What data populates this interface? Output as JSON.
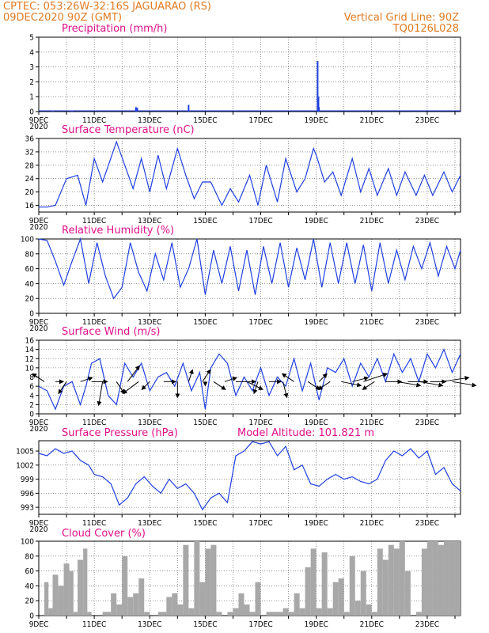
{
  "header": {
    "line1_left": "CPTEC:  053:26W-32:16S  JAGUARAO (RS)",
    "line2_left": "09DEC2020 90Z (GMT)",
    "line1_right": "Vertical Grid Line: 90Z",
    "line2_right": "TQ0126L028"
  },
  "colors": {
    "series": "#1f3fe0",
    "cloud": "#a8a8a8",
    "title": "#e0108a",
    "header": "#e07b22",
    "wind": "#000000"
  },
  "x_axis": {
    "labels": [
      "9DEC",
      "11DEC",
      "13DEC",
      "15DEC",
      "17DEC",
      "19DEC",
      "21DEC",
      "23DEC"
    ],
    "label_days": [
      9,
      11,
      13,
      15,
      17,
      19,
      21,
      23
    ],
    "first_label": "9DEC",
    "subtitle_fragment": "2020",
    "range_days": [
      9,
      24.2
    ]
  },
  "chart_data": [
    {
      "id": "precip",
      "type": "bar",
      "title": "Precipitation (mm/h)",
      "ylim": [
        0,
        5
      ],
      "yticks": [
        0,
        1,
        2,
        3,
        4,
        5
      ],
      "grid": true,
      "x": [
        9.5,
        10.2,
        12.5,
        12.55,
        14.4,
        19.05,
        19.08,
        19.1
      ],
      "values": [
        0.05,
        0.05,
        0.3,
        0.25,
        0.45,
        3.4,
        1.0,
        0.3
      ]
    },
    {
      "id": "temp",
      "type": "line",
      "title": "Surface Temperature (nC)",
      "ylim": [
        14,
        36
      ],
      "yticks": [
        16,
        20,
        24,
        28,
        32,
        36
      ],
      "grid": true,
      "x": [
        9.0,
        9.3,
        9.6,
        10.0,
        10.4,
        10.7,
        11.0,
        11.3,
        11.8,
        12.1,
        12.4,
        12.7,
        13.0,
        13.3,
        13.6,
        14.0,
        14.3,
        14.6,
        14.9,
        15.2,
        15.6,
        15.9,
        16.2,
        16.6,
        16.9,
        17.2,
        17.6,
        17.9,
        18.3,
        18.6,
        18.9,
        19.0,
        19.3,
        19.6,
        19.9,
        20.3,
        20.6,
        20.9,
        21.2,
        21.6,
        21.9,
        22.2,
        22.6,
        22.9,
        23.2,
        23.6,
        23.9,
        24.2
      ],
      "values": [
        15.5,
        15.5,
        16,
        24,
        25,
        16,
        30,
        23,
        35,
        28,
        21,
        30,
        20,
        31,
        21,
        33,
        25,
        18,
        23,
        23,
        16,
        21,
        17,
        25,
        16,
        28,
        17,
        30,
        20,
        24,
        33,
        31,
        23,
        26,
        19,
        30,
        20,
        27,
        19,
        27,
        19,
        26,
        19,
        25,
        19,
        26,
        20,
        25
      ]
    },
    {
      "id": "rh",
      "type": "line",
      "title": "Relative Humidity (%)",
      "ylim": [
        0,
        100
      ],
      "yticks": [
        0,
        20,
        40,
        60,
        80,
        100
      ],
      "grid": true,
      "x": [
        9.0,
        9.3,
        9.6,
        9.9,
        10.2,
        10.5,
        10.8,
        11.1,
        11.4,
        11.7,
        12.0,
        12.3,
        12.6,
        12.9,
        13.2,
        13.5,
        13.8,
        14.1,
        14.4,
        14.7,
        15.0,
        15.3,
        15.6,
        15.9,
        16.2,
        16.5,
        16.8,
        17.1,
        17.4,
        17.7,
        18.0,
        18.3,
        18.6,
        18.9,
        19.2,
        19.5,
        19.8,
        20.1,
        20.4,
        20.7,
        21.0,
        21.3,
        21.6,
        21.9,
        22.2,
        22.5,
        22.8,
        23.1,
        23.4,
        23.7,
        24.0,
        24.2
      ],
      "values": [
        100,
        98,
        70,
        38,
        70,
        100,
        40,
        95,
        50,
        20,
        35,
        95,
        55,
        30,
        80,
        45,
        95,
        35,
        60,
        100,
        25,
        85,
        40,
        90,
        30,
        85,
        25,
        90,
        40,
        95,
        35,
        88,
        45,
        100,
        35,
        95,
        40,
        95,
        40,
        92,
        30,
        95,
        40,
        85,
        45,
        90,
        60,
        95,
        50,
        90,
        60,
        85
      ]
    },
    {
      "id": "wind",
      "type": "line",
      "title": "Surface Wind (m/s)",
      "ylim": [
        0,
        16
      ],
      "yticks": [
        0,
        2,
        4,
        6,
        8,
        10,
        12,
        14,
        16
      ],
      "grid": true,
      "x": [
        9.0,
        9.3,
        9.6,
        9.9,
        10.2,
        10.5,
        10.7,
        10.9,
        11.2,
        11.5,
        11.8,
        12.1,
        12.4,
        12.7,
        13.0,
        13.3,
        13.6,
        13.9,
        14.2,
        14.5,
        14.8,
        15.0,
        15.2,
        15.5,
        15.8,
        16.1,
        16.4,
        16.7,
        17.0,
        17.3,
        17.6,
        17.9,
        18.2,
        18.5,
        18.8,
        19.1,
        19.4,
        19.7,
        20.0,
        20.3,
        20.6,
        20.9,
        21.2,
        21.5,
        21.8,
        22.1,
        22.4,
        22.7,
        23.0,
        23.3,
        23.6,
        23.9,
        24.2
      ],
      "values": [
        6,
        5,
        1,
        6,
        7,
        2,
        6,
        11,
        12,
        4,
        2,
        11,
        8,
        11,
        5,
        8,
        9,
        6,
        11,
        5,
        9,
        1,
        10,
        13,
        11,
        4,
        8,
        5,
        10,
        4,
        8,
        6,
        12,
        5,
        11,
        3,
        10,
        9,
        12,
        6,
        11,
        8,
        12,
        7,
        13,
        9,
        12,
        7,
        13,
        10,
        14,
        9,
        13
      ]
    },
    {
      "id": "pres",
      "type": "line",
      "title": "Surface Pressure (hPa)",
      "annotation": "Model Altitude: 101.821  m",
      "ylim": [
        991.5,
        1007.2
      ],
      "yticks": [
        993,
        996,
        999,
        1002,
        1005
      ],
      "grid": true,
      "x": [
        9.0,
        9.3,
        9.6,
        9.9,
        10.2,
        10.5,
        10.8,
        11.0,
        11.3,
        11.6,
        11.9,
        12.2,
        12.5,
        12.8,
        13.1,
        13.4,
        13.7,
        14.0,
        14.3,
        14.6,
        14.9,
        15.2,
        15.5,
        15.8,
        16.1,
        16.4,
        16.7,
        17.0,
        17.3,
        17.6,
        17.9,
        18.2,
        18.5,
        18.8,
        19.1,
        19.4,
        19.7,
        20.0,
        20.3,
        20.6,
        20.9,
        21.2,
        21.5,
        21.8,
        22.1,
        22.4,
        22.7,
        23.0,
        23.3,
        23.6,
        23.9,
        24.2
      ],
      "values": [
        1004.5,
        1004,
        1005.5,
        1004.5,
        1005,
        1003,
        1002,
        1000,
        999.5,
        998,
        993.5,
        995,
        998,
        999.5,
        997.5,
        996,
        999,
        997,
        998,
        996,
        992.5,
        995,
        996,
        994,
        1004,
        1005,
        1007,
        1006.5,
        1007,
        1004,
        1006,
        1001,
        1002,
        998,
        997.5,
        999,
        1000,
        999,
        999.5,
        998.5,
        998,
        999,
        1003,
        1005,
        1004,
        1005.5,
        1003.5,
        1005,
        1000,
        1001.5,
        998,
        996.5
      ]
    },
    {
      "id": "cloud",
      "type": "area",
      "title": "Cloud Cover (%)",
      "ylim": [
        0,
        100
      ],
      "yticks": [
        0,
        20,
        40,
        60,
        80,
        100
      ],
      "grid": true,
      "x": [
        9.0,
        9.2,
        9.35,
        9.5,
        9.7,
        9.9,
        10.1,
        10.25,
        10.4,
        10.6,
        10.75,
        10.9,
        11.0,
        11.3,
        11.6,
        11.8,
        12.0,
        12.2,
        12.4,
        12.6,
        12.8,
        13.0,
        13.3,
        13.6,
        13.8,
        14.0,
        14.2,
        14.4,
        14.6,
        14.8,
        15.0,
        15.2,
        15.4,
        15.6,
        15.8,
        16.0,
        16.2,
        16.4,
        16.6,
        16.8,
        17.0,
        17.2,
        17.5,
        17.8,
        18.0,
        18.2,
        18.4,
        18.6,
        18.8,
        19.0,
        19.2,
        19.4,
        19.6,
        19.8,
        20.0,
        20.2,
        20.4,
        20.6,
        20.8,
        21.0,
        21.2,
        21.4,
        21.6,
        21.8,
        22.0,
        22.2,
        22.4,
        22.6,
        22.8,
        23.0,
        23.2,
        23.4,
        23.6,
        23.8,
        24.0,
        24.2
      ],
      "values": [
        0,
        45,
        10,
        55,
        40,
        70,
        60,
        5,
        75,
        90,
        5,
        0,
        0,
        5,
        30,
        15,
        80,
        25,
        30,
        50,
        5,
        0,
        5,
        25,
        30,
        15,
        95,
        10,
        100,
        45,
        90,
        95,
        5,
        0,
        5,
        10,
        30,
        15,
        5,
        45,
        0,
        5,
        5,
        10,
        5,
        30,
        10,
        65,
        90,
        10,
        85,
        10,
        45,
        50,
        5,
        80,
        20,
        60,
        15,
        5,
        90,
        75,
        95,
        90,
        100,
        60,
        0,
        5,
        90,
        100,
        100,
        95,
        100,
        100,
        100,
        100
      ]
    }
  ],
  "wind_vectors": {
    "x": [
      9.2,
      9.6,
      10.0,
      10.5,
      10.9,
      11.3,
      11.8,
      12.2,
      12.6,
      13.0,
      13.5,
      14.0,
      14.4,
      14.9,
      15.0,
      15.3,
      15.7,
      16.1,
      16.5,
      16.9,
      17.3,
      17.8,
      18.2,
      18.7,
      19.1,
      19.5,
      19.9,
      20.3,
      20.7,
      21.1,
      21.5,
      21.9,
      22.3,
      22.7,
      23.1,
      23.5,
      23.9
    ],
    "u": [
      -3,
      2,
      -2,
      3,
      4,
      -1,
      2,
      3,
      -4,
      -2,
      3,
      0,
      1,
      2,
      0,
      3,
      3,
      5,
      4,
      -1,
      3,
      1,
      -3,
      3,
      2,
      -3,
      5,
      4,
      6,
      -3,
      4,
      6,
      5,
      6,
      4,
      7,
      6
    ],
    "v": [
      2,
      0,
      -3,
      1,
      0,
      -6,
      -3,
      4,
      -3,
      -2,
      0,
      -4,
      3,
      3,
      -1,
      -2,
      1,
      0,
      -2,
      -3,
      0,
      -4,
      2,
      -2,
      2,
      -2,
      -1,
      1,
      2,
      -2,
      0,
      -1,
      0,
      -1,
      0,
      1,
      -1
    ]
  }
}
